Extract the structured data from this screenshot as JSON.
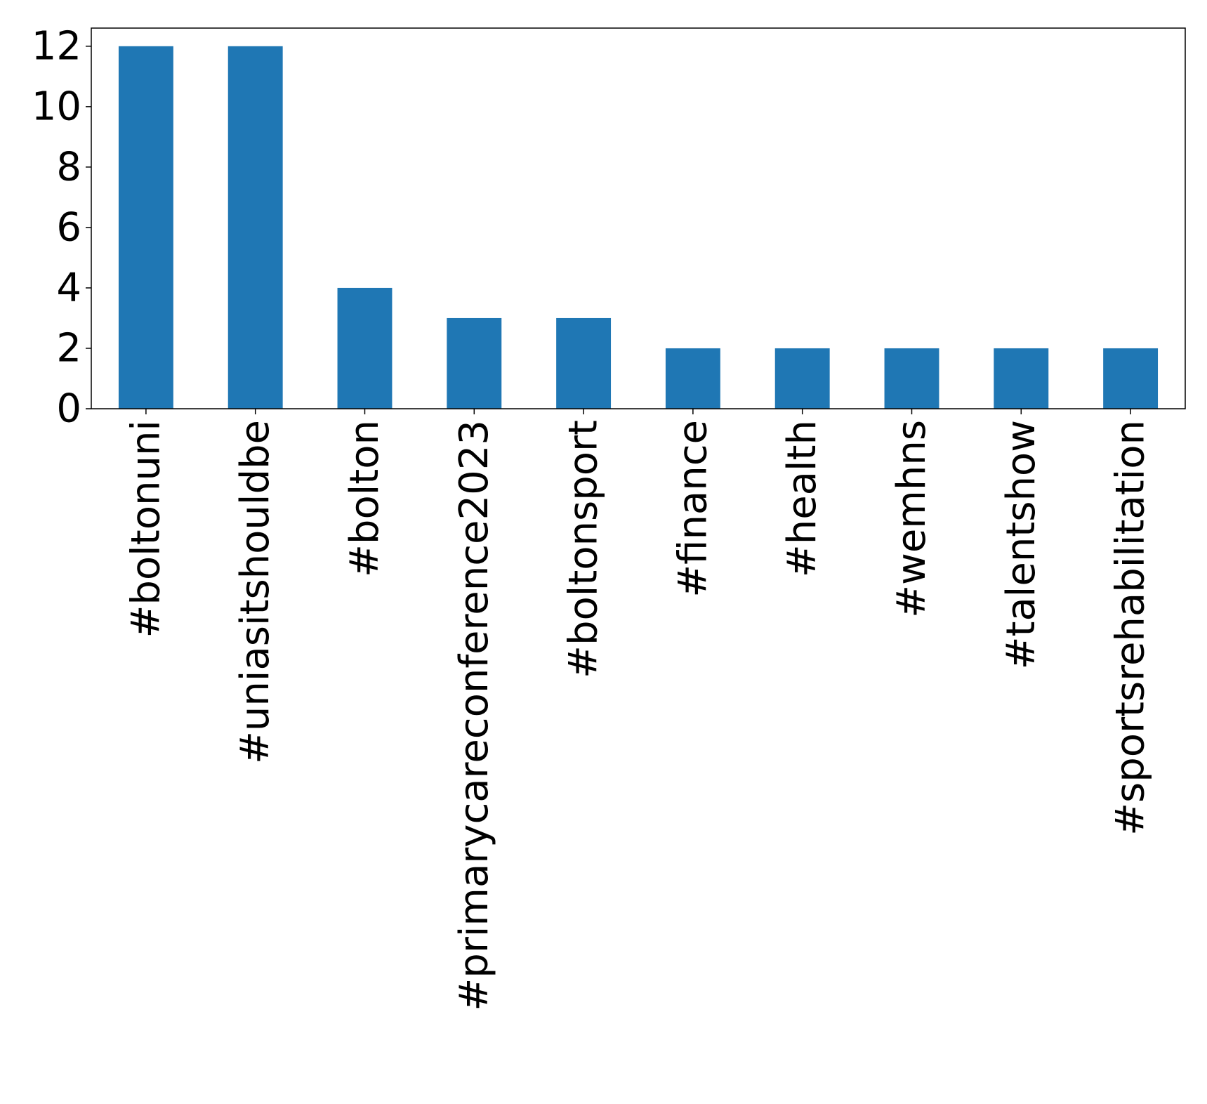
{
  "chart_data": {
    "type": "bar",
    "title": "",
    "xlabel": "",
    "ylabel": "",
    "categories": [
      "#boltonuni",
      "#uniasitshouldbe",
      "#bolton",
      "#primarycareconference2023",
      "#boltonsport",
      "#finance",
      "#health",
      "#wemhns",
      "#talentshow",
      "#sportsrehabilitation"
    ],
    "values": [
      12,
      12,
      4,
      3,
      3,
      2,
      2,
      2,
      2,
      2
    ],
    "ylim": [
      0,
      12.6
    ],
    "yticks": [
      0,
      2,
      4,
      6,
      8,
      10,
      12
    ],
    "x_tick_rotation": "vertical",
    "grid": false,
    "legend": "none",
    "bar_color": "#1f77b4"
  }
}
